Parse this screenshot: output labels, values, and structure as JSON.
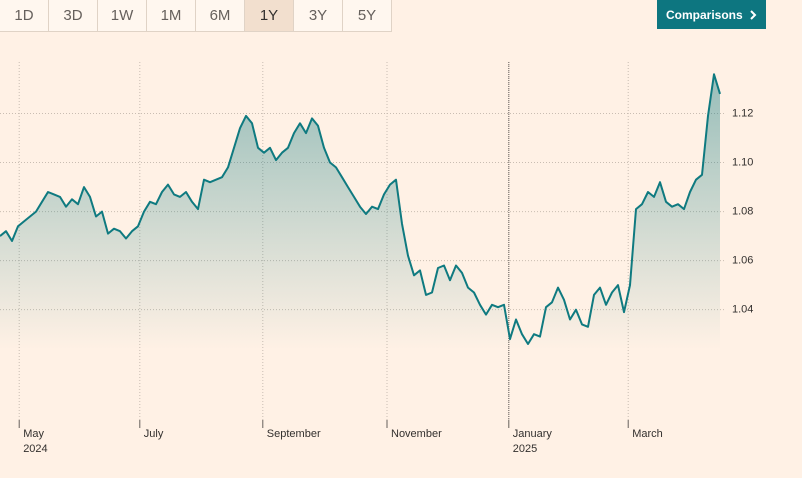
{
  "range_tabs": [
    "1D",
    "3D",
    "1W",
    "1M",
    "6M",
    "1Y",
    "3Y",
    "5Y"
  ],
  "selected_range": "1Y",
  "comparisons_button": "Comparisons",
  "chart_data": {
    "type": "area",
    "color": "#0f7a80",
    "grid": true,
    "xlim": [
      0,
      120
    ],
    "xticks": [
      {
        "value": 3.2,
        "label": "May"
      },
      {
        "value": 23.3,
        "label": "July"
      },
      {
        "value": 43.8,
        "label": "September"
      },
      {
        "value": 64.5,
        "label": "November"
      },
      {
        "value": 84.8,
        "label": "January"
      },
      {
        "value": 104.7,
        "label": "March"
      }
    ],
    "xtick_years": [
      {
        "value": 3.2,
        "label": "2024"
      },
      {
        "value": 84.8,
        "label": "2025"
      }
    ],
    "ylim": [
      0.995,
      1.141
    ],
    "yticks": [
      {
        "value": 1.04,
        "label": "1.04"
      },
      {
        "value": 1.06,
        "label": "1.06"
      },
      {
        "value": 1.08,
        "label": "1.08"
      },
      {
        "value": 1.1,
        "label": "1.10"
      },
      {
        "value": 1.12,
        "label": "1.12"
      }
    ],
    "values": [
      1.07,
      1.072,
      1.068,
      1.074,
      1.076,
      1.078,
      1.08,
      1.084,
      1.088,
      1.087,
      1.086,
      1.082,
      1.085,
      1.083,
      1.09,
      1.086,
      1.078,
      1.08,
      1.071,
      1.073,
      1.072,
      1.069,
      1.072,
      1.074,
      1.08,
      1.084,
      1.083,
      1.088,
      1.091,
      1.087,
      1.086,
      1.088,
      1.084,
      1.081,
      1.093,
      1.092,
      1.093,
      1.094,
      1.098,
      1.106,
      1.114,
      1.119,
      1.116,
      1.106,
      1.104,
      1.106,
      1.101,
      1.104,
      1.106,
      1.112,
      1.116,
      1.112,
      1.118,
      1.115,
      1.106,
      1.1,
      1.098,
      1.094,
      1.09,
      1.086,
      1.082,
      1.079,
      1.082,
      1.081,
      1.087,
      1.091,
      1.093,
      1.075,
      1.062,
      1.054,
      1.056,
      1.046,
      1.047,
      1.057,
      1.058,
      1.052,
      1.058,
      1.055,
      1.049,
      1.047,
      1.042,
      1.038,
      1.042,
      1.041,
      1.042,
      1.028,
      1.036,
      1.03,
      1.026,
      1.03,
      1.029,
      1.041,
      1.043,
      1.049,
      1.044,
      1.036,
      1.04,
      1.034,
      1.033,
      1.046,
      1.049,
      1.042,
      1.047,
      1.05,
      1.039,
      1.05,
      1.081,
      1.083,
      1.088,
      1.086,
      1.092,
      1.084,
      1.082,
      1.083,
      1.081,
      1.088,
      1.093,
      1.095,
      1.119,
      1.136,
      1.128
    ]
  }
}
